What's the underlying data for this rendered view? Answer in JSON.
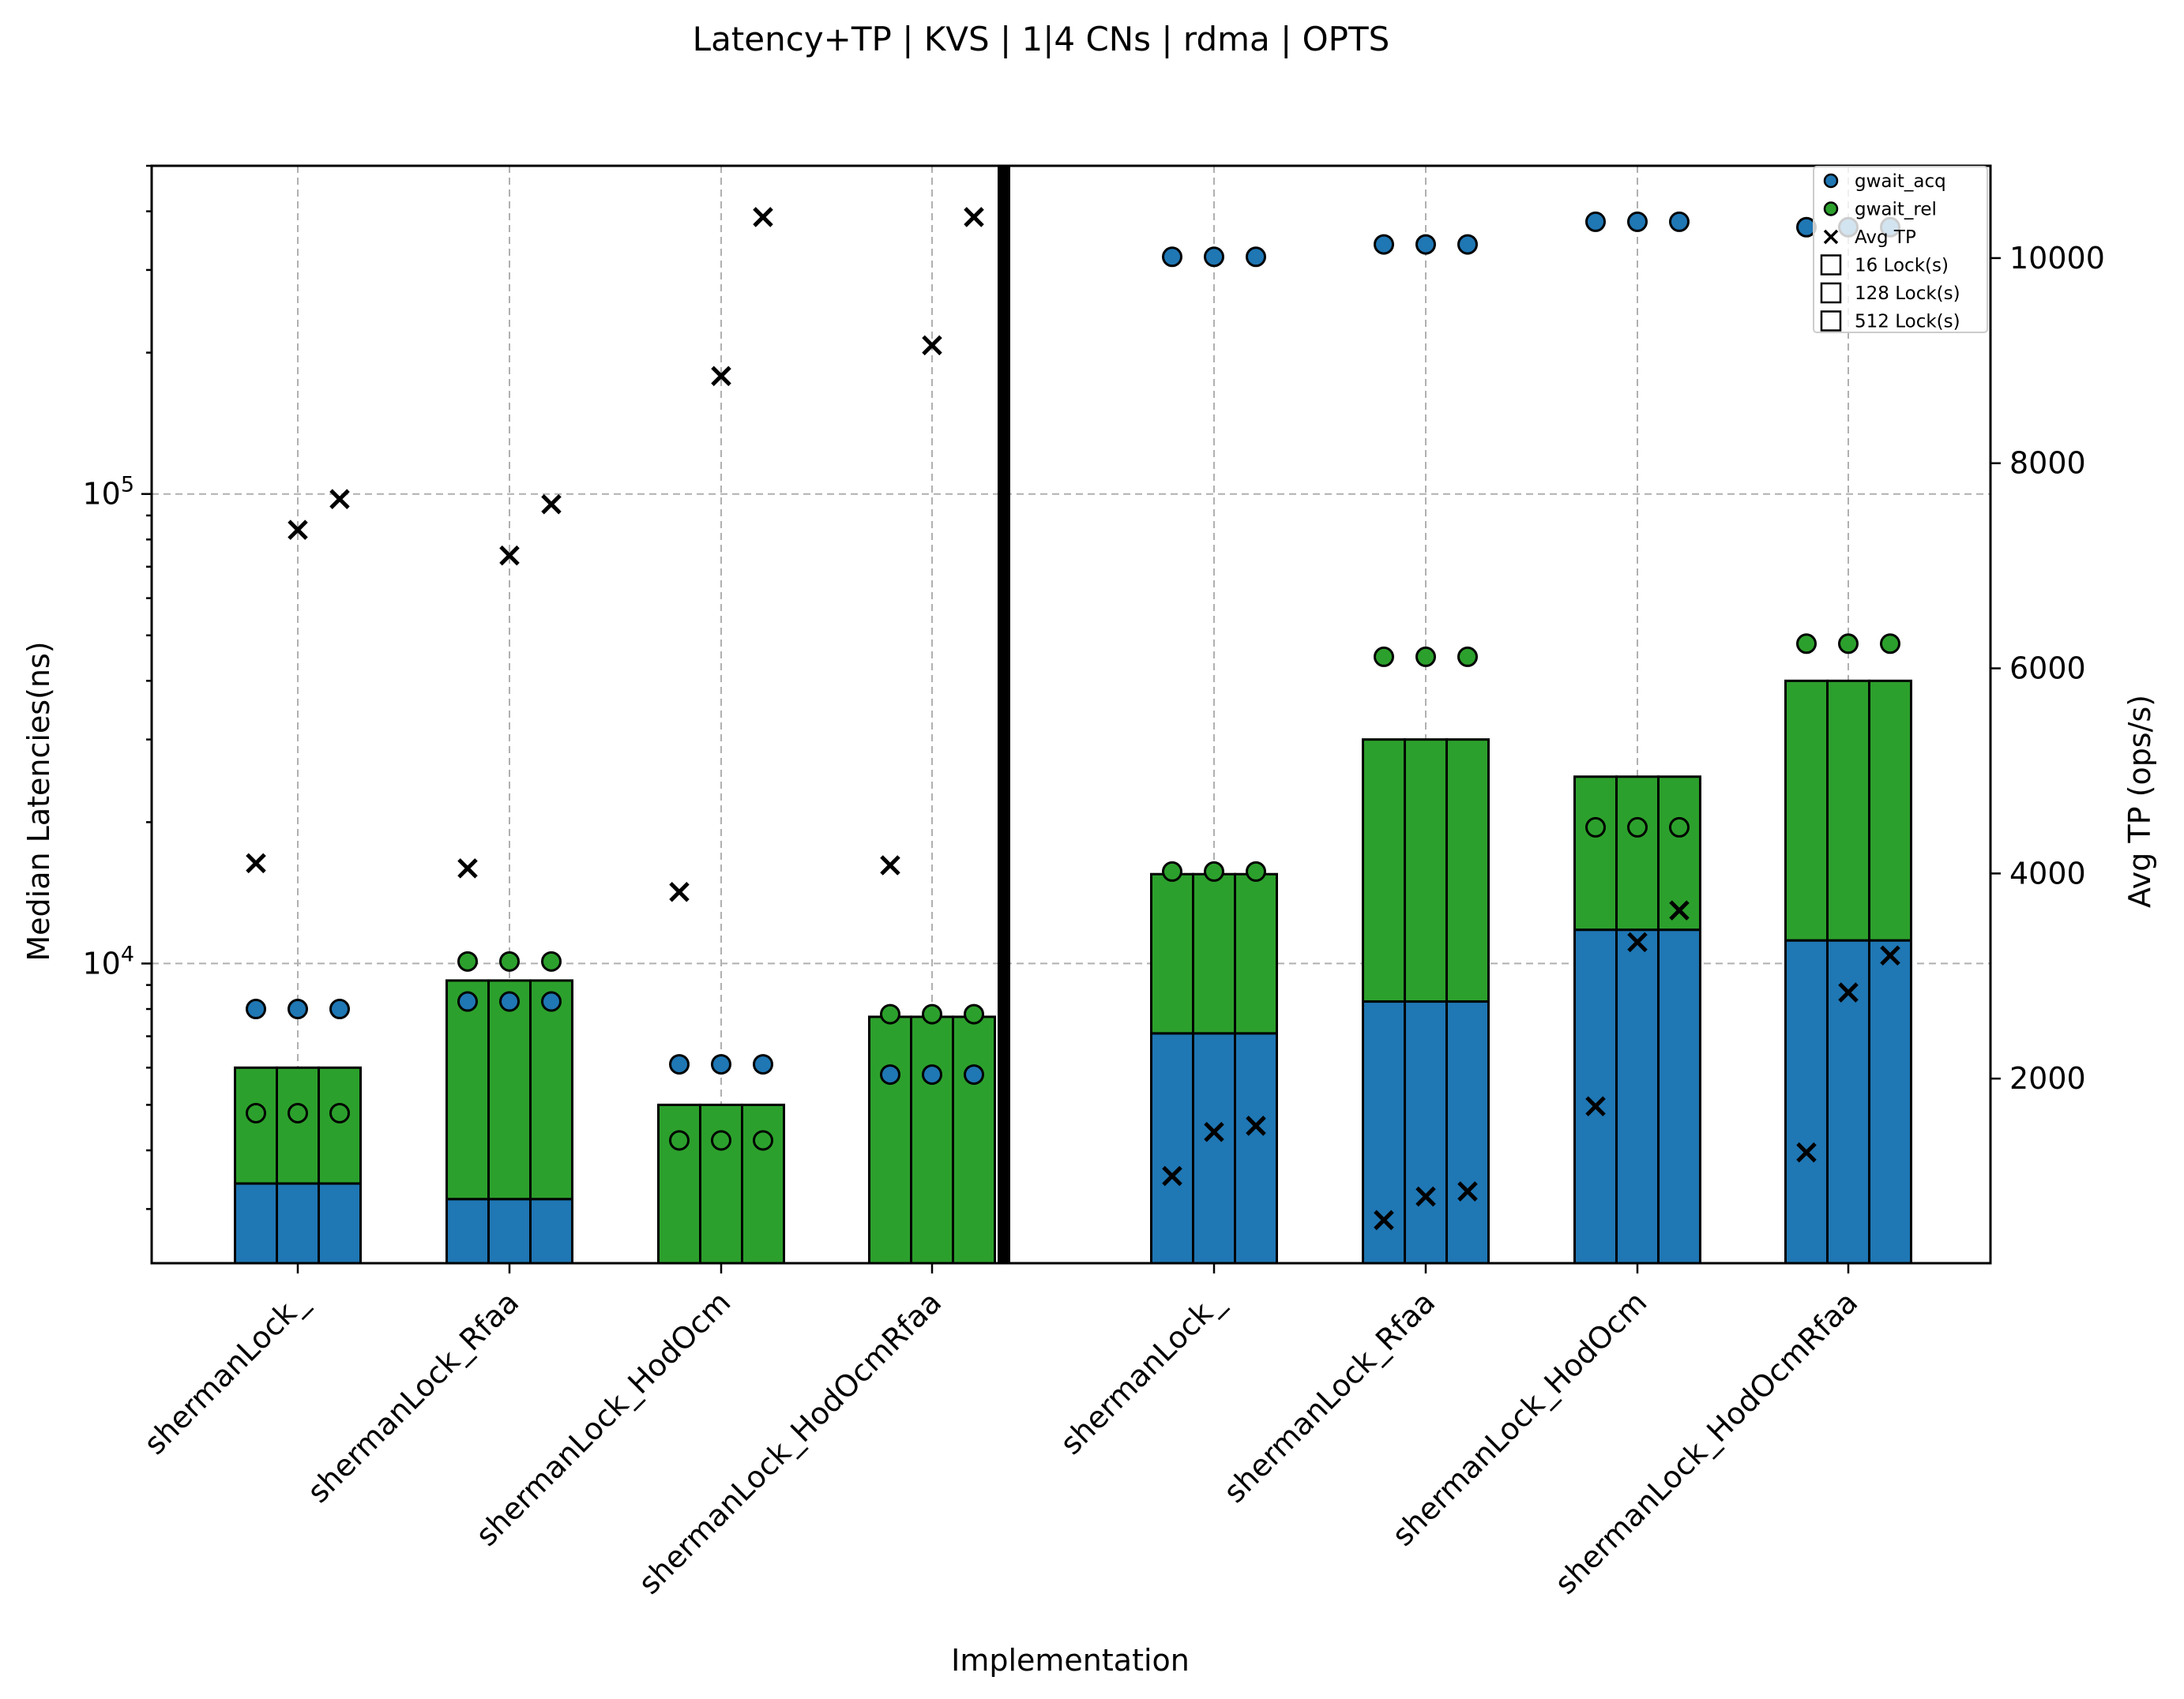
{
  "chart_data": {
    "type": "bar",
    "title": "Latency+TP | KVS | 1|4 CNs | rdma | OPTS",
    "xlabel": "Implementation",
    "ylabel": "Median Latencies(ns)",
    "y2label": "Avg TP (ops/s)",
    "y_scale": "log",
    "ylim": [
      2300,
      500000
    ],
    "y_ticks": [
      {
        "value": 10000,
        "base": "10",
        "exp": "4"
      },
      {
        "value": 100000,
        "base": "10",
        "exp": "5"
      }
    ],
    "y2lim": [
      200,
      10900
    ],
    "y2_ticks": [
      "2000",
      "4000",
      "6000",
      "8000",
      "10000"
    ],
    "grid": true,
    "legend_position": "top-right",
    "legend": [
      "gwait_acq",
      "gwait_rel",
      "Avg TP",
      "16 Lock(s)",
      "128 Lock(s)",
      "512 Lock(s)"
    ],
    "colors": {
      "acq": "#1f77b4",
      "rel": "#2ca02c",
      "edge": "#000000",
      "grid": "#b0b0b0"
    },
    "categories": [
      "shermanLock_",
      "shermanLock_Rfaa",
      "shermanLock_HodOcm",
      "shermanLock_HodOcmRfaa",
      "shermanLock_",
      "shermanLock_Rfaa",
      "shermanLock_HodOcm",
      "shermanLock_HodOcmRfaa"
    ],
    "groups": [
      {
        "bar_acq": [
          3400,
          3400,
          3400
        ],
        "bar_total": [
          6000,
          6000,
          6000
        ],
        "gwait_acq": [
          8000,
          8000,
          8000
        ],
        "gwait_rel": [
          4800,
          4800,
          4800
        ],
        "avg_tp": [
          4100,
          7350,
          7650
        ]
      },
      {
        "bar_acq": [
          3150,
          3150,
          3150
        ],
        "bar_total": [
          9200,
          9200,
          9200
        ],
        "gwait_acq": [
          8300,
          8300,
          8300
        ],
        "gwait_rel": [
          10100,
          10100,
          10100
        ],
        "avg_tp": [
          4050,
          7100,
          7600
        ]
      },
      {
        "bar_acq": null,
        "bar_total": [
          5000,
          5000,
          5000
        ],
        "gwait_acq": [
          6100,
          6100,
          6100
        ],
        "gwait_rel": [
          4200,
          4200,
          4200
        ],
        "avg_tp": [
          3820,
          8850,
          10400
        ]
      },
      {
        "bar_acq": null,
        "bar_total": [
          7700,
          7700,
          7700
        ],
        "gwait_acq": [
          5800,
          5800,
          5800
        ],
        "gwait_rel": [
          7800,
          7800,
          7800
        ],
        "avg_tp": [
          4080,
          9150,
          10400
        ]
      },
      {
        "bar_acq": [
          7100,
          7100,
          7100
        ],
        "bar_total": [
          15500,
          15500,
          15500
        ],
        "gwait_acq": [
          320000,
          320000,
          320000
        ],
        "gwait_rel": [
          15700,
          15700,
          15700
        ],
        "avg_tp": [
          1050,
          1480,
          1540
        ]
      },
      {
        "bar_acq": [
          8300,
          8300,
          8300
        ],
        "bar_total": [
          30000,
          30000,
          30000
        ],
        "gwait_acq": [
          340000,
          340000,
          340000
        ],
        "gwait_rel": [
          45000,
          45000,
          45000
        ],
        "avg_tp": [
          620,
          850,
          900
        ]
      },
      {
        "bar_acq": [
          11800,
          11800,
          11800
        ],
        "bar_total": [
          25000,
          25000,
          25000
        ],
        "gwait_acq": [
          380000,
          380000,
          380000
        ],
        "gwait_rel": [
          19500,
          19500,
          19500
        ],
        "avg_tp": [
          1730,
          3330,
          3640
        ]
      },
      {
        "bar_acq": [
          11200,
          11200,
          11200
        ],
        "bar_total": [
          40000,
          40000,
          40000
        ],
        "gwait_acq": [
          370000,
          370000,
          370000
        ],
        "gwait_rel": [
          48000,
          48000,
          48000
        ],
        "avg_tp": [
          1280,
          2840,
          3200
        ]
      }
    ]
  }
}
